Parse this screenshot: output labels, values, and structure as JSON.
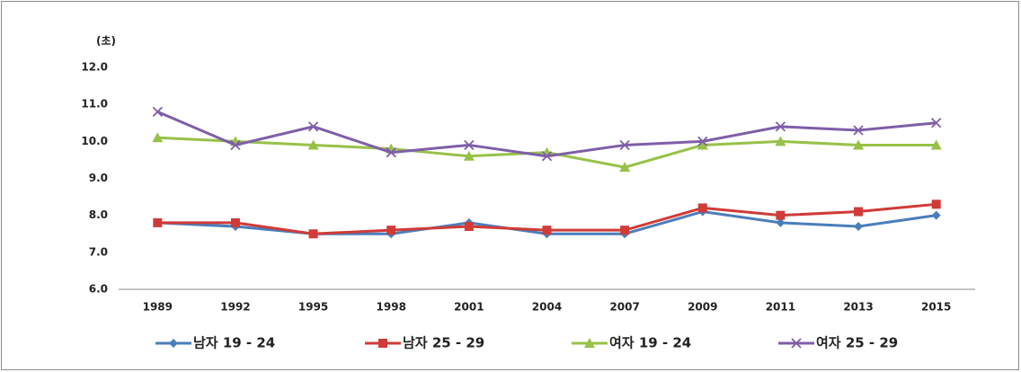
{
  "chart_data": {
    "type": "line",
    "y_label": "(초)",
    "categories": [
      "1989",
      "1992",
      "1995",
      "1998",
      "2001",
      "2004",
      "2007",
      "2009",
      "2011",
      "2013",
      "2015"
    ],
    "series": [
      {
        "name": "남자 19 - 24",
        "color": "#4a7ebb",
        "marker": "diamond",
        "values": [
          7.8,
          7.7,
          7.5,
          7.5,
          7.8,
          7.5,
          7.5,
          8.1,
          7.8,
          7.7,
          8.0
        ]
      },
      {
        "name": "남자 25 - 29",
        "color": "#d03b38",
        "marker": "square",
        "values": [
          7.8,
          7.8,
          7.5,
          7.6,
          7.7,
          7.6,
          7.6,
          8.2,
          8.0,
          8.1,
          8.3
        ]
      },
      {
        "name": "여자 19 - 24",
        "color": "#98c148",
        "marker": "triangle",
        "values": [
          10.1,
          10.0,
          9.9,
          9.8,
          9.6,
          9.7,
          9.3,
          9.9,
          10.0,
          9.9,
          9.9
        ]
      },
      {
        "name": "여자 25 - 29",
        "color": "#7f5ea8",
        "marker": "x",
        "values": [
          10.8,
          9.9,
          10.4,
          9.7,
          9.9,
          9.6,
          9.9,
          10.0,
          10.4,
          10.3,
          10.5
        ]
      }
    ],
    "ylim": [
      6,
      12
    ],
    "yticks": [
      {
        "value": 6,
        "label": "6.0"
      },
      {
        "value": 7,
        "label": "7.0"
      },
      {
        "value": 8,
        "label": "8.0"
      },
      {
        "value": 9,
        "label": "9.0"
      },
      {
        "value": 10,
        "label": "10.0"
      },
      {
        "value": 11,
        "label": "11.0"
      },
      {
        "value": 12,
        "label": "12.0"
      }
    ],
    "grid": false,
    "legend": "bottom"
  }
}
